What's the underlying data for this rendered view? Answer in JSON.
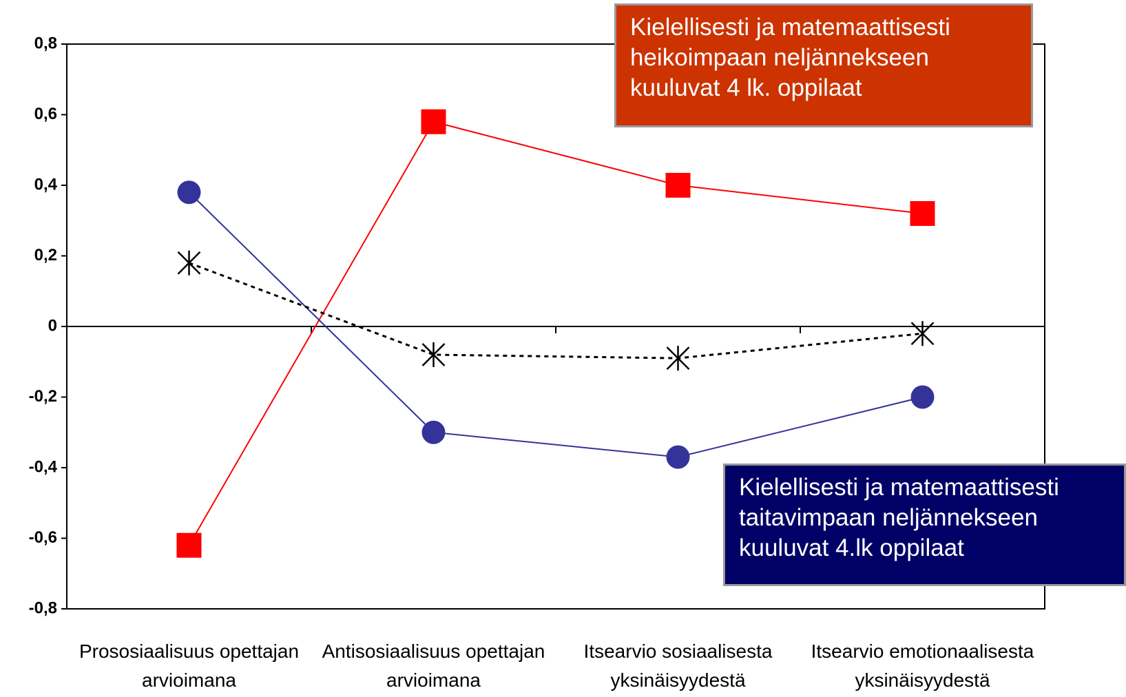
{
  "chart_data": {
    "type": "line",
    "categories": [
      "Prososiaalisuus opettajan arvioimana",
      "Antisosiaalisuus opettajan arvioimana",
      "Itsearvio sosiaalisesta yksinäisyydestä",
      "Itsearvio emotionaalisesta yksinäisyydestä"
    ],
    "series": [
      {
        "name": "Kielellisesti ja matemaattisesti heikoimpaan neljännekseen kuuluvat 4 lk. oppilaat",
        "color": "#ff0000",
        "marker": "square",
        "values": [
          -0.62,
          0.58,
          0.4,
          0.32
        ]
      },
      {
        "name": "Kielellisesti ja matemaattisesti taitavimpaan neljännekseen kuuluvat 4.lk oppilaat",
        "color": "#333399",
        "marker": "circle",
        "values": [
          0.38,
          -0.3,
          -0.37,
          -0.2
        ]
      },
      {
        "color": "#000000",
        "marker": "star",
        "dashed": true,
        "values": [
          0.18,
          -0.08,
          -0.09,
          -0.02
        ]
      }
    ],
    "ylim": [
      -0.8,
      0.8
    ],
    "yticks": [
      {
        "value": -0.8,
        "label": "-0,8"
      },
      {
        "value": -0.6,
        "label": "-0,6"
      },
      {
        "value": -0.4,
        "label": "-0,4"
      },
      {
        "value": -0.2,
        "label": "-0,2"
      },
      0,
      {
        "value": 0.2,
        "label": "0,2"
      },
      {
        "value": 0.4,
        "label": "0,4"
      },
      {
        "value": 0.6,
        "label": "0,6"
      },
      {
        "value": 0.8,
        "label": "0,8"
      }
    ],
    "legend_fills": [
      "#cc3300",
      "#000066"
    ]
  }
}
